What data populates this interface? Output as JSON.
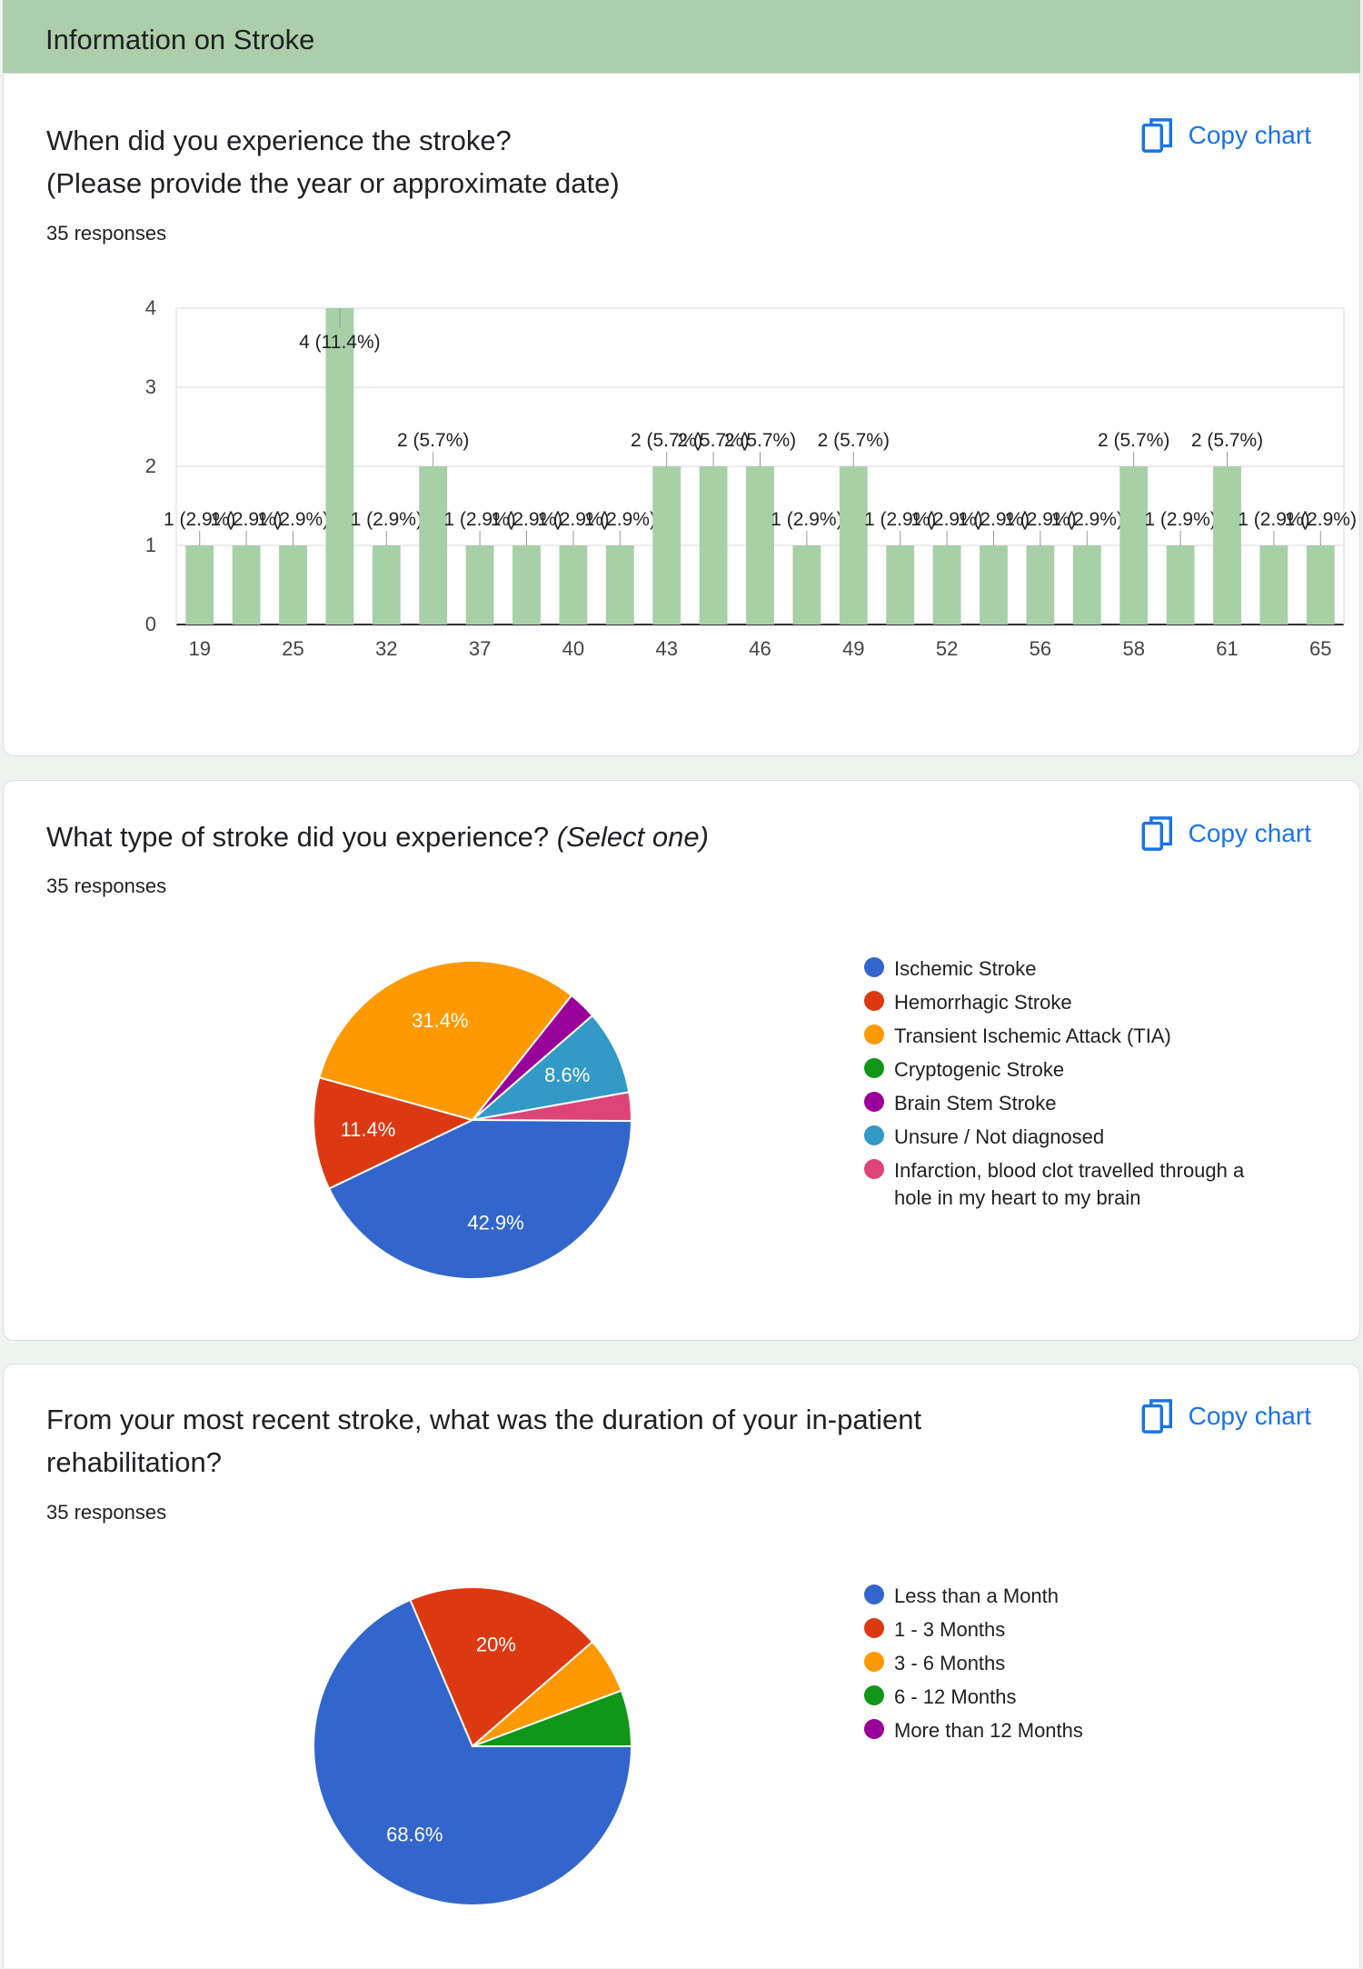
{
  "section": {
    "title": "Information on Stroke"
  },
  "copy_label": "Copy chart",
  "cards": [
    {
      "question_line1": "When did you experience the stroke?",
      "question_line2": "(Please provide the year or approximate date)",
      "responses": "35 responses"
    },
    {
      "question": "What type of stroke did you experience?",
      "question_suffix": "(Select one)",
      "responses": "35 responses"
    },
    {
      "question_line1": "From your most recent stroke, what was the duration of your in-patient",
      "question_line2": "rehabilitation?",
      "responses": "35 responses"
    }
  ],
  "colors": {
    "bar": "#a8d0a7",
    "blue": "#3366cc",
    "red": "#dc3912",
    "orange": "#ff9900",
    "green": "#109618",
    "purple": "#990099",
    "teal": "#3399c6",
    "pink": "#dd4477"
  },
  "chart_data": [
    {
      "type": "bar",
      "tick_labels": [
        "19",
        "25",
        "32",
        "37",
        "40",
        "43",
        "46",
        "49",
        "52",
        "56",
        "58",
        "61",
        "65"
      ],
      "values": [
        1,
        1,
        1,
        4,
        1,
        2,
        1,
        1,
        1,
        1,
        2,
        2,
        2,
        1,
        2,
        1,
        1,
        1,
        1,
        1,
        2,
        1,
        2,
        1,
        1
      ],
      "data_labels": [
        "1 (2.9%)",
        "1 (2.9%)",
        "1 (2.9%)",
        "4 (11.4%)",
        "1 (2.9%)",
        "2 (5.7%)",
        "1 (2.9%)",
        "1 (2.9%)",
        "1 (2.9%)",
        "1 (2.9%)",
        "2 (5.7%)",
        "2 (5.7%)",
        "2 (5.7%)",
        "1 (2.9%)",
        "2 (5.7%)",
        "1 (2.9%)",
        "1 (2.9%)",
        "1 (2.9%)",
        "1 (2.9%)",
        "1 (2.9%)",
        "2 (5.7%)",
        "1 (2.9%)",
        "2 (5.7%)",
        "1 (2.9%)",
        "1 (2.9%)"
      ],
      "y_ticks": [
        0,
        1,
        2,
        3,
        4
      ],
      "ylim": [
        0,
        4
      ],
      "grid": true
    },
    {
      "type": "pie",
      "slices": [
        {
          "label": "Ischemic Stroke",
          "percent": 42.9,
          "color": "#3366cc",
          "text": "42.9%"
        },
        {
          "label": "Hemorrhagic Stroke",
          "percent": 11.4,
          "color": "#dc3912",
          "text": "11.4%"
        },
        {
          "label": "Transient Ischemic Attack (TIA)",
          "percent": 31.4,
          "color": "#ff9900",
          "text": "31.4%"
        },
        {
          "label": "Cryptogenic Stroke",
          "percent": 0,
          "color": "#109618",
          "text": ""
        },
        {
          "label": "Brain Stem Stroke",
          "percent": 2.9,
          "color": "#990099",
          "text": ""
        },
        {
          "label": "Unsure / Not diagnosed",
          "percent": 8.6,
          "color": "#3399c6",
          "text": "8.6%"
        },
        {
          "label": "Infarction, blood clot travelled through a hole in my heart to my brain",
          "percent": 2.9,
          "color": "#dd4477",
          "text": ""
        }
      ],
      "legend_position": "right"
    },
    {
      "type": "pie",
      "slices": [
        {
          "label": "Less than a Month",
          "percent": 68.6,
          "color": "#3366cc",
          "text": "68.6%"
        },
        {
          "label": "1 - 3 Months",
          "percent": 20,
          "color": "#dc3912",
          "text": "20%"
        },
        {
          "label": "3 - 6 Months",
          "percent": 5.7,
          "color": "#ff9900",
          "text": ""
        },
        {
          "label": "6 - 12 Months",
          "percent": 5.7,
          "color": "#109618",
          "text": ""
        },
        {
          "label": "More than 12 Months",
          "percent": 0,
          "color": "#990099",
          "text": ""
        }
      ],
      "legend_position": "right"
    }
  ]
}
